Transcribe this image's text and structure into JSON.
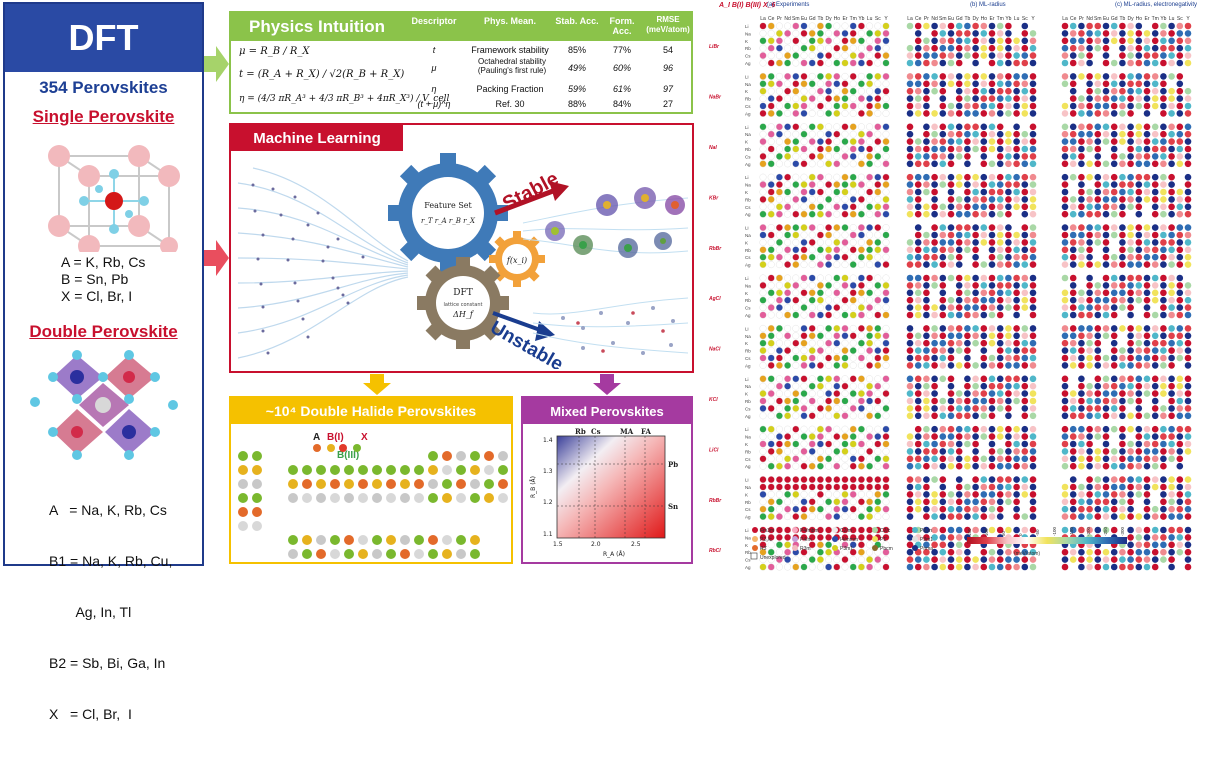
{
  "dft": {
    "title": "DFT",
    "count": "354 Perovskites",
    "single_heading": "Single Perovskite",
    "single_formula": [
      "A   = K, Rb, Cs",
      "B   = Sn, Pb",
      "X   = Cl, Br,  I"
    ],
    "double_heading": "Double Perovskite",
    "double_formula": [
      "A   = Na, K, Rb, Cs",
      "B1 = Na, K, Rb, Cu,",
      "       Ag, In, Tl",
      "B2 = Sb, Bi, Ga, In",
      "X   = Cl, Br,  I"
    ]
  },
  "physics": {
    "title": "Physics Intuition",
    "columns": [
      "Descriptor",
      "Phys. Mean.",
      "Stab. Acc.",
      "Form. Acc.",
      "RMSE (meV/atom)"
    ],
    "equations": [
      "μ = R_B / R_X",
      "t = (R_A + R_X) / √2(R_B + R_X)",
      "η = (4/3 πR_A³ + 4/3 πR_B³ + 4πR_X³) / V_cell"
    ],
    "rows": [
      [
        "t",
        "Framework stability",
        "85%",
        "77%",
        "54"
      ],
      [
        "μ",
        "Octahedral stability (Pauling's first rule)",
        "49%",
        "60%",
        "96"
      ],
      [
        "η",
        "Packing Fraction",
        "59%",
        "61%",
        "97"
      ],
      [
        "(t + μ)^η",
        "Ref. 30",
        "88%",
        "84%",
        "27"
      ]
    ]
  },
  "ml": {
    "title": "Machine Learning",
    "feature_gear": [
      "Feature Set",
      "r_T  r_A  r_B  r_X"
    ],
    "f_gear": "f(x_i)",
    "dft_gear": [
      "DFT",
      "lattice constant",
      "ΔH_f"
    ],
    "stable": "Stable",
    "unstable": "Unstable"
  },
  "double_halide": {
    "title": "~10⁴ Double Halide Perovskites",
    "legend": [
      "A",
      "B(I)",
      "X",
      "B(III)"
    ]
  },
  "mixed": {
    "title": "Mixed Perovskites",
    "top_labels": [
      "Rb",
      "Cs",
      "MA",
      "FA"
    ],
    "right_labels": [
      "Pb",
      "Sn"
    ],
    "ylabel": "R_B (Å)",
    "xlabel": "R_A (Å)",
    "yticks": [
      "1.4",
      "1.3",
      "1.2",
      "1.1"
    ],
    "xticks": [
      "1.5",
      "2.0",
      "2.5"
    ]
  },
  "map": {
    "formula": "A_I B(I) B(III) X_6",
    "axis_letters": [
      "B(III)",
      "B(I)"
    ],
    "panels": [
      "(a) Experiments",
      "(b) ML-radius",
      "(c) ML-radius, electronegativity"
    ],
    "columns": [
      "La",
      "Ce",
      "Pr",
      "Nd",
      "Sm",
      "Eu",
      "Gd",
      "Tb",
      "Dy",
      "Ho",
      "Er",
      "Tm",
      "Yb",
      "Lu",
      "Sc",
      "Y"
    ],
    "rows": [
      "Li",
      "Na",
      "K",
      "Rb",
      "Cs",
      "Ag"
    ],
    "groups": [
      "LiBr",
      "NaBr",
      "NaI",
      "KBr",
      "RbBr",
      "AgCl",
      "NaCl",
      "KCl",
      "LiCl",
      "RbBr",
      "RbCl",
      "CsI",
      "CsBr",
      "CsCl"
    ],
    "legend": [
      "Fm3m",
      "P4/mbm",
      "C2/m",
      "C2/c",
      "P2₁/n",
      "P2₁/c",
      "P4/m",
      "I4/mmm",
      "P1̄",
      "P3m1",
      "R3̄",
      "R3m",
      "P3̄m1",
      "Pbcm",
      "Pnma",
      "Unexplored"
    ],
    "colorbar_ticks": [
      "150",
      "100",
      "50",
      "0",
      "-50",
      "-100",
      "-150",
      "-200",
      "-250",
      "-300"
    ],
    "colorbar_unit": "(meV/atom)"
  },
  "colors": {
    "dft_blue": "#2a4aa4",
    "physics_green": "#8bc34a",
    "ml_red": "#c8102e",
    "halide_yellow": "#f5c100",
    "mixed_purple": "#a53aa0",
    "stable_red": "#b11226",
    "unstable_blue": "#1a3d8f"
  }
}
